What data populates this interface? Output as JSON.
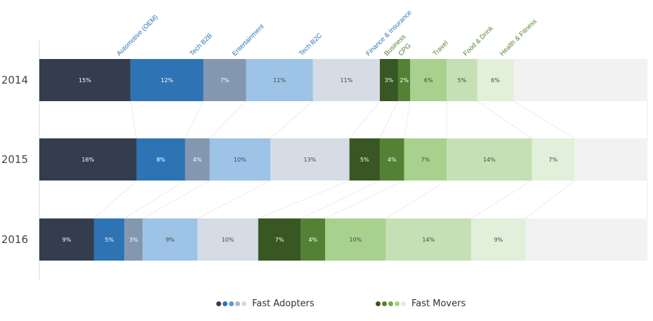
{
  "chart_data": {
    "type": "bar",
    "orientation": "horizontal-stacked",
    "title": "",
    "xlabel": "",
    "ylabel": "",
    "xlim": [
      0,
      100
    ],
    "grid": false,
    "legend_position": "bottom",
    "categories": [
      "2014",
      "2015",
      "2016"
    ],
    "series": [
      {
        "name": "Automotive (OEM)",
        "group": "Fast Adopters",
        "color": "#333d4e",
        "label_color": "#2e75b6",
        "text_color": "#ffffff",
        "values": [
          15,
          16,
          9
        ]
      },
      {
        "name": "Tech B2B",
        "group": "Fast Adopters",
        "color": "#2e74b5",
        "label_color": "#2e75b6",
        "text_color": "#ffffff",
        "values": [
          12,
          8,
          5
        ]
      },
      {
        "name": "Entertainment",
        "group": "Fast Adopters",
        "color": "#8497b0",
        "label_color": "#2e75b6",
        "text_color": "#ffffff",
        "values": [
          7,
          4,
          3
        ]
      },
      {
        "name": "Tech B2C",
        "group": "Fast Adopters",
        "color": "#9dc3e6",
        "label_color": "#2e75b6",
        "text_color": "#444444",
        "values": [
          11,
          10,
          9
        ]
      },
      {
        "name": "Finance & Insurance",
        "group": "Fast Adopters",
        "color": "#d6dce5",
        "label_color": "#2e75b6",
        "text_color": "#444444",
        "values": [
          11,
          13,
          10
        ]
      },
      {
        "name": "Business",
        "group": "Fast Movers",
        "color": "#385723",
        "label_color": "#548235",
        "text_color": "#ffffff",
        "values": [
          3,
          5,
          7
        ]
      },
      {
        "name": "CPG",
        "group": "Fast Movers",
        "color": "#548235",
        "label_color": "#548235",
        "text_color": "#ffffff",
        "values": [
          2,
          4,
          4
        ]
      },
      {
        "name": "Travel",
        "group": "Fast Movers",
        "color": "#a9d18e",
        "label_color": "#548235",
        "text_color": "#444444",
        "values": [
          6,
          7,
          10
        ]
      },
      {
        "name": "Food & Drink",
        "group": "Fast Movers",
        "color": "#c5e0b4",
        "label_color": "#548235",
        "text_color": "#444444",
        "values": [
          5,
          14,
          14
        ]
      },
      {
        "name": "Health & Fitness",
        "group": "Fast Movers",
        "color": "#e2efda",
        "label_color": "#548235",
        "text_color": "#444444",
        "values": [
          6,
          7,
          9
        ]
      }
    ],
    "remainder_color": "#f2f2f2",
    "data_label_format": "{v}%",
    "legend": [
      {
        "label": "Fast Adopters",
        "dot_colors": [
          "#333d4e",
          "#2e74b5",
          "#5b9bd5",
          "#adb9ca",
          "#d6dce5"
        ]
      },
      {
        "label": "Fast Movers",
        "dot_colors": [
          "#385723",
          "#548235",
          "#70ad47",
          "#a9d18e",
          "#e2efda"
        ]
      }
    ]
  }
}
